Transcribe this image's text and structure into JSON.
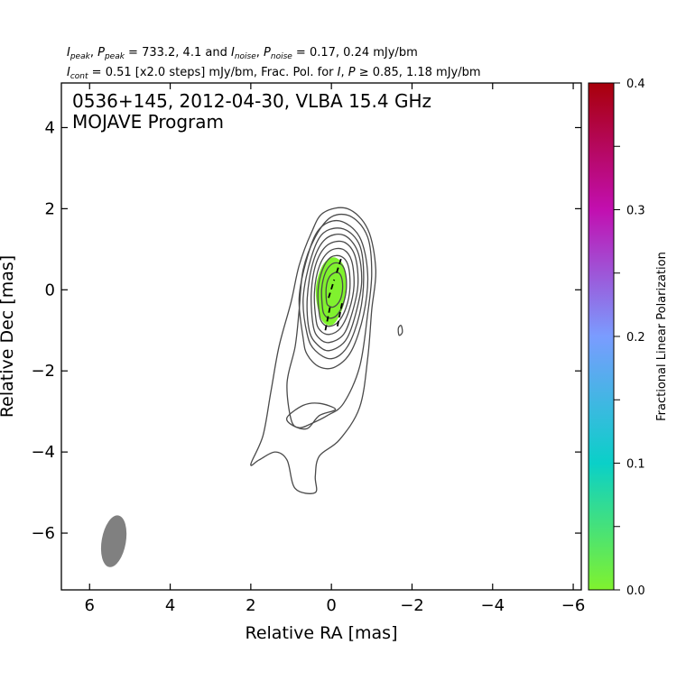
{
  "header": {
    "line1": "I_peak, P_peak = 733.2, 4.1 and I_noise, P_noise = 0.17, 0.24 mJy/bm",
    "line2": "I_cont = 0.51 [x2.0 steps] mJy/bm, Frac. Pol. for I, P ≥ 0.85, 1.18 mJy/bm"
  },
  "chart_data": {
    "type": "contour",
    "title": "0536+145, 2012-04-30, VLBA 15.4 GHz",
    "subtitle": "MOJAVE Program",
    "xlabel": "Relative RA [mas]",
    "ylabel": "Relative Dec [mas]",
    "xlim": [
      6.7,
      -6.2
    ],
    "ylim": [
      -7.4,
      5.1
    ],
    "xticks": [
      6,
      4,
      2,
      0,
      -2,
      -4,
      -6
    ],
    "xtick_labels": [
      "6",
      "4",
      "2",
      "0",
      "−2",
      "−4",
      "−6"
    ],
    "yticks": [
      4,
      2,
      0,
      -2,
      -4,
      -6
    ],
    "ytick_labels": [
      "4",
      "2",
      "0",
      "−2",
      "−4",
      "−6"
    ],
    "contour_color": "#4a4a4a",
    "contours": [
      {
        "level": 1,
        "points": [
          [
            2.0,
            -4.3
          ],
          [
            1.7,
            -3.6
          ],
          [
            1.5,
            -2.5
          ],
          [
            1.3,
            -1.4
          ],
          [
            1.0,
            -0.3
          ],
          [
            0.8,
            0.6
          ],
          [
            0.5,
            1.4
          ],
          [
            0.2,
            1.9
          ],
          [
            -0.4,
            2.0
          ],
          [
            -0.9,
            1.5
          ],
          [
            -1.1,
            0.5
          ],
          [
            -1.0,
            -0.5
          ],
          [
            -0.9,
            -1.7
          ],
          [
            -0.7,
            -2.9
          ],
          [
            -0.2,
            -3.7
          ],
          [
            0.3,
            -4.1
          ],
          [
            0.4,
            -4.6
          ],
          [
            0.4,
            -5.0
          ],
          [
            0.9,
            -4.9
          ],
          [
            1.1,
            -4.2
          ],
          [
            1.4,
            -4.0
          ],
          [
            1.8,
            -4.2
          ]
        ]
      },
      {
        "level": 2,
        "points": [
          [
            1.0,
            -3.2
          ],
          [
            1.1,
            -2.3
          ],
          [
            0.9,
            -1.4
          ],
          [
            0.8,
            -0.5
          ],
          [
            0.7,
            0.5
          ],
          [
            0.4,
            1.3
          ],
          [
            0.0,
            1.8
          ],
          [
            -0.5,
            1.8
          ],
          [
            -0.9,
            1.3
          ],
          [
            -1.0,
            0.4
          ],
          [
            -0.9,
            -0.6
          ],
          [
            -0.7,
            -1.9
          ],
          [
            -0.3,
            -2.8
          ],
          [
            0.1,
            -3.1
          ],
          [
            0.5,
            -3.3
          ],
          [
            0.8,
            -3.4
          ]
        ]
      },
      {
        "level": 4,
        "points": [
          [
            0.7,
            -1.2
          ],
          [
            0.8,
            -0.2
          ],
          [
            0.6,
            0.8
          ],
          [
            0.3,
            1.5
          ],
          [
            -0.2,
            1.7
          ],
          [
            -0.7,
            1.3
          ],
          [
            -0.9,
            0.4
          ],
          [
            -0.8,
            -0.6
          ],
          [
            -0.5,
            -1.5
          ],
          [
            -0.1,
            -1.9
          ],
          [
            0.3,
            -1.9
          ],
          [
            0.6,
            -1.6
          ]
        ]
      },
      {
        "level": 8,
        "points": [
          [
            0.6,
            -1.1
          ],
          [
            0.7,
            -0.2
          ],
          [
            0.5,
            0.8
          ],
          [
            0.2,
            1.4
          ],
          [
            -0.3,
            1.5
          ],
          [
            -0.7,
            1.1
          ],
          [
            -0.8,
            0.3
          ],
          [
            -0.7,
            -0.6
          ],
          [
            -0.4,
            -1.4
          ],
          [
            0.0,
            -1.7
          ],
          [
            0.4,
            -1.5
          ]
        ]
      },
      {
        "level": 16,
        "points": [
          [
            0.55,
            -1.0
          ],
          [
            0.6,
            -0.2
          ],
          [
            0.45,
            0.7
          ],
          [
            0.15,
            1.25
          ],
          [
            -0.3,
            1.35
          ],
          [
            -0.65,
            0.95
          ],
          [
            -0.75,
            0.2
          ],
          [
            -0.6,
            -0.6
          ],
          [
            -0.35,
            -1.25
          ],
          [
            0.05,
            -1.5
          ],
          [
            0.35,
            -1.35
          ]
        ]
      },
      {
        "level": 32,
        "points": [
          [
            0.45,
            -0.9
          ],
          [
            0.5,
            -0.1
          ],
          [
            0.38,
            0.65
          ],
          [
            0.1,
            1.1
          ],
          [
            -0.3,
            1.18
          ],
          [
            -0.58,
            0.85
          ],
          [
            -0.66,
            0.15
          ],
          [
            -0.52,
            -0.55
          ],
          [
            -0.3,
            -1.1
          ],
          [
            0.05,
            -1.3
          ],
          [
            0.3,
            -1.2
          ]
        ]
      },
      {
        "level": 64,
        "points": [
          [
            0.38,
            -0.75
          ],
          [
            0.42,
            -0.05
          ],
          [
            0.3,
            0.58
          ],
          [
            0.05,
            0.95
          ],
          [
            -0.28,
            1.0
          ],
          [
            -0.5,
            0.72
          ],
          [
            -0.56,
            0.1
          ],
          [
            -0.44,
            -0.5
          ],
          [
            -0.22,
            -0.95
          ],
          [
            0.06,
            -1.1
          ],
          [
            0.28,
            -1.0
          ]
        ]
      },
      {
        "level": 128,
        "points": [
          [
            0.3,
            -0.6
          ],
          [
            0.33,
            0.0
          ],
          [
            0.22,
            0.5
          ],
          [
            0.02,
            0.8
          ],
          [
            -0.25,
            0.82
          ],
          [
            -0.42,
            0.58
          ],
          [
            -0.46,
            0.05
          ],
          [
            -0.36,
            -0.45
          ],
          [
            -0.16,
            -0.8
          ],
          [
            0.06,
            -0.9
          ],
          [
            0.22,
            -0.82
          ]
        ]
      },
      {
        "level": 256,
        "points": [
          [
            0.22,
            -0.45
          ],
          [
            0.24,
            0.02
          ],
          [
            0.15,
            0.42
          ],
          [
            -0.02,
            0.64
          ],
          [
            -0.22,
            0.64
          ],
          [
            -0.34,
            0.45
          ],
          [
            -0.37,
            0.02
          ],
          [
            -0.28,
            -0.38
          ],
          [
            -0.12,
            -0.64
          ],
          [
            0.05,
            -0.7
          ],
          [
            0.17,
            -0.62
          ]
        ]
      },
      {
        "level": 512,
        "points": [
          [
            0.12,
            -0.3
          ],
          [
            0.13,
            0.05
          ],
          [
            0.06,
            0.3
          ],
          [
            -0.08,
            0.42
          ],
          [
            -0.2,
            0.4
          ],
          [
            -0.27,
            0.22
          ],
          [
            -0.27,
            -0.05
          ],
          [
            -0.2,
            -0.28
          ],
          [
            -0.06,
            -0.42
          ],
          [
            0.06,
            -0.4
          ]
        ]
      },
      {
        "level": 1,
        "points": [
          [
            -1.68,
            -1.12
          ],
          [
            -1.66,
            -0.95
          ],
          [
            -1.73,
            -0.88
          ],
          [
            -1.76,
            -1.05
          ]
        ]
      },
      {
        "level": 1,
        "points": [
          [
            1.1,
            -3.15
          ],
          [
            0.95,
            -3.35
          ],
          [
            0.6,
            -3.42
          ],
          [
            0.3,
            -3.1
          ],
          [
            -0.1,
            -2.95
          ],
          [
            0.3,
            -2.8
          ],
          [
            0.7,
            -2.85
          ]
        ]
      }
    ],
    "polarization_region": {
      "fraction": 0.0,
      "color": "#80f22e",
      "points": [
        [
          0.35,
          -0.4
        ],
        [
          0.38,
          0.1
        ],
        [
          0.22,
          0.6
        ],
        [
          -0.05,
          0.8
        ],
        [
          -0.3,
          0.6
        ],
        [
          -0.38,
          0.1
        ],
        [
          -0.28,
          -0.45
        ],
        [
          -0.05,
          -0.85
        ],
        [
          0.2,
          -0.8
        ]
      ]
    },
    "evpa_vectors": [
      [
        [
          0.15,
          -1.0
        ],
        [
          0.02,
          -0.35
        ]
      ],
      [
        [
          0.07,
          -0.2
        ],
        [
          -0.07,
          0.25
        ]
      ],
      [
        [
          -0.13,
          0.42
        ],
        [
          -0.25,
          0.8
        ]
      ],
      [
        [
          -0.15,
          -0.9
        ],
        [
          -0.28,
          -0.25
        ]
      ]
    ],
    "beam": {
      "x": 5.4,
      "y": -6.2,
      "major_mas": 1.3,
      "minor_mas": 0.6,
      "pa_deg": -10,
      "color": "#808080"
    },
    "colorbar": {
      "label": "Fractional Linear Polarization",
      "range": [
        0.0,
        0.4
      ],
      "ticks": [
        0.0,
        0.1,
        0.2,
        0.3,
        0.4
      ],
      "tick_labels": [
        "0.0",
        "0.1",
        "0.2",
        "0.3",
        "0.4"
      ],
      "colors": [
        "#80f22e",
        "#0ad0c8",
        "#7a9cff",
        "#c20fb0",
        "#a8000a"
      ]
    }
  }
}
